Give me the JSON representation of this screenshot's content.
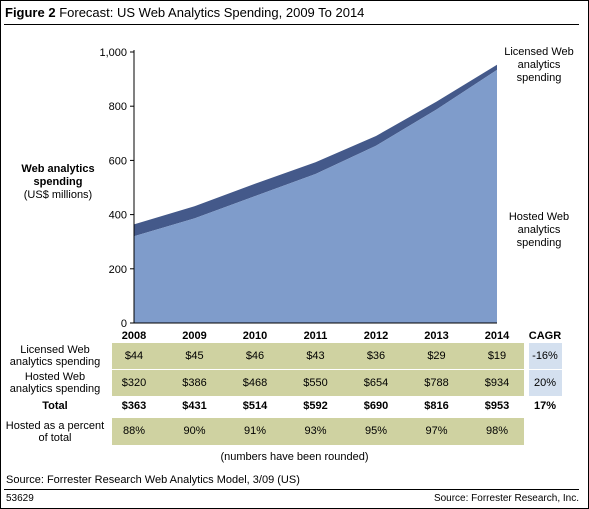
{
  "figure": {
    "label": "Figure 2",
    "title": "Forecast: US Web Analytics Spending, 2009 To 2014"
  },
  "yaxis": {
    "label_bold": "Web analytics spending",
    "label_unit": "(US$ millions)"
  },
  "series_labels": {
    "licensed": "Licensed Web analytics spending",
    "hosted": "Hosted Web analytics spending"
  },
  "table": {
    "cagr_header": "CAGR",
    "rows": [
      {
        "label": "Licensed Web analytics spending",
        "values": [
          "$44",
          "$45",
          "$46",
          "$43",
          "$36",
          "$29",
          "$19"
        ],
        "cagr": "-16%",
        "style": "band"
      },
      {
        "label": "Hosted Web analytics spending",
        "values": [
          "$320",
          "$386",
          "$468",
          "$550",
          "$654",
          "$788",
          "$934"
        ],
        "cagr": "20%",
        "style": "band"
      },
      {
        "label": "Total",
        "values": [
          "$363",
          "$431",
          "$514",
          "$592",
          "$690",
          "$816",
          "$953"
        ],
        "cagr": "17%",
        "style": "total"
      },
      {
        "label": "Hosted as a percent of total",
        "values": [
          "88%",
          "90%",
          "91%",
          "93%",
          "95%",
          "97%",
          "98%"
        ],
        "cagr": "",
        "style": "band"
      }
    ]
  },
  "note": "(numbers have been rounded)",
  "source": "Source: Forrester Research Web Analytics Model, 3/09 (US)",
  "figure_id": "53629",
  "copyright": "Source: Forrester Research, Inc.",
  "colors": {
    "hosted": "#7f9ccb",
    "licensed": "#44598a",
    "band": "#cfd2a1",
    "cagr_box": "#d4e0ef"
  },
  "chart_data": {
    "type": "area",
    "stacked": true,
    "x": [
      "2008",
      "2009",
      "2010",
      "2011",
      "2012",
      "2013",
      "2014"
    ],
    "series": [
      {
        "name": "Hosted Web analytics spending",
        "values": [
          320,
          386,
          468,
          550,
          654,
          788,
          934
        ]
      },
      {
        "name": "Licensed Web analytics spending",
        "values": [
          44,
          45,
          46,
          43,
          36,
          29,
          19
        ]
      }
    ],
    "ylim": [
      0,
      1000
    ],
    "yticks": [
      0,
      200,
      400,
      600,
      800,
      1000
    ],
    "ytick_labels": [
      "0",
      "200",
      "400",
      "600",
      "800",
      "1,000"
    ]
  }
}
